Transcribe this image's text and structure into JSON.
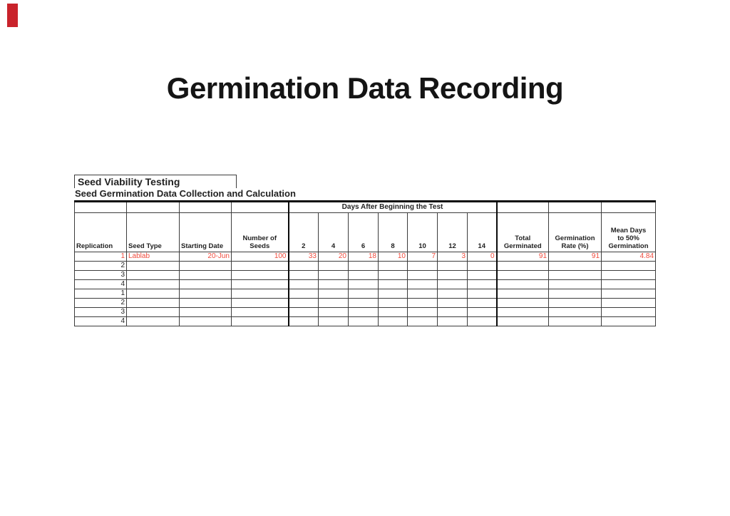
{
  "slide": {
    "title": "Germination Data Recording",
    "accent_bar_color": "#c9232b",
    "data_text_color": "#ef4b3d"
  },
  "table": {
    "caption_title": "Seed Viability Testing",
    "caption_subtitle": "Seed Germination Data Collection and Calculation",
    "days_group_header": "Days After Beginning the Test",
    "columns": [
      "Replication",
      "Seed Type",
      "Starting Date",
      "Number of\nSeeds",
      "2",
      "4",
      "6",
      "8",
      "10",
      "12",
      "14",
      "Total\nGerminated",
      "Germination\nRate (%)",
      "Mean Days\nto 50%\nGermination"
    ],
    "rows": [
      {
        "red": true,
        "cells": [
          "1",
          "Lablab",
          "20-Jun",
          "100",
          "33",
          "20",
          "18",
          "10",
          "7",
          "3",
          "0",
          "91",
          "91",
          "4.84"
        ]
      },
      {
        "red": false,
        "cells": [
          "2",
          "",
          "",
          "",
          "",
          "",
          "",
          "",
          "",
          "",
          "",
          "",
          "",
          ""
        ]
      },
      {
        "red": false,
        "cells": [
          "3",
          "",
          "",
          "",
          "",
          "",
          "",
          "",
          "",
          "",
          "",
          "",
          "",
          ""
        ]
      },
      {
        "red": false,
        "cells": [
          "4",
          "",
          "",
          "",
          "",
          "",
          "",
          "",
          "",
          "",
          "",
          "",
          "",
          ""
        ]
      },
      {
        "red": false,
        "cells": [
          "1",
          "",
          "",
          "",
          "",
          "",
          "",
          "",
          "",
          "",
          "",
          "",
          "",
          ""
        ]
      },
      {
        "red": false,
        "cells": [
          "2",
          "",
          "",
          "",
          "",
          "",
          "",
          "",
          "",
          "",
          "",
          "",
          "",
          ""
        ]
      },
      {
        "red": false,
        "cells": [
          "3",
          "",
          "",
          "",
          "",
          "",
          "",
          "",
          "",
          "",
          "",
          "",
          "",
          ""
        ]
      },
      {
        "red": false,
        "cells": [
          "4",
          "",
          "",
          "",
          "",
          "",
          "",
          "",
          "",
          "",
          "",
          "",
          "",
          ""
        ]
      }
    ]
  }
}
